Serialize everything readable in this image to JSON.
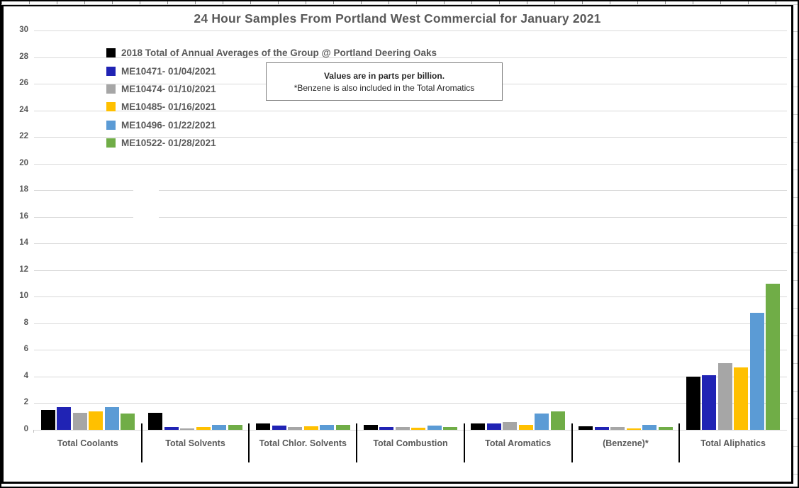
{
  "chart_data": {
    "type": "bar",
    "title": "24 Hour Samples From Portland West Commercial for January 2021",
    "annotation": {
      "line1": "Values are in parts per billion.",
      "line2": "*Benzene is also included in the Total Aromatics"
    },
    "categories": [
      "Total Coolants",
      "Total Solvents",
      "Total Chlor. Solvents",
      "Total Combustion",
      "Total Aromatics",
      "(Benzene)*",
      "Total Aliphatics"
    ],
    "series": [
      {
        "name": "2018 Total of Annual Averages of the Group @ Portland Deering Oaks",
        "color": "#000000",
        "values": [
          1.5,
          1.3,
          0.5,
          0.4,
          0.5,
          0.25,
          4.0
        ]
      },
      {
        "name": "ME10471- 01/04/2021",
        "color": "#2023B4",
        "values": [
          1.7,
          0.2,
          0.3,
          0.2,
          0.5,
          0.2,
          4.1
        ]
      },
      {
        "name": "ME10474- 01/10/2021",
        "color": "#A6A6A6",
        "values": [
          1.3,
          0.1,
          0.2,
          0.2,
          0.6,
          0.2,
          5.0
        ]
      },
      {
        "name": "ME10485- 01/16/2021",
        "color": "#FFC000",
        "values": [
          1.4,
          0.2,
          0.25,
          0.15,
          0.4,
          0.1,
          4.7
        ]
      },
      {
        "name": "ME10496- 01/22/2021",
        "color": "#5B9BD5",
        "values": [
          1.7,
          0.4,
          0.35,
          0.3,
          1.2,
          0.35,
          8.8
        ]
      },
      {
        "name": "ME10522- 01/28/2021",
        "color": "#70AD47",
        "values": [
          1.2,
          0.4,
          0.4,
          0.2,
          1.4,
          0.2,
          11.0
        ]
      }
    ],
    "ylabel": "",
    "xlabel": "",
    "ylim": [
      0,
      30
    ],
    "ytick_step": 2,
    "grid": true,
    "legend_position": "top-left",
    "units": "parts per billion"
  },
  "colors": {
    "text": "#595959",
    "gridline": "#D9D9D9",
    "chart_border": "#000000"
  }
}
